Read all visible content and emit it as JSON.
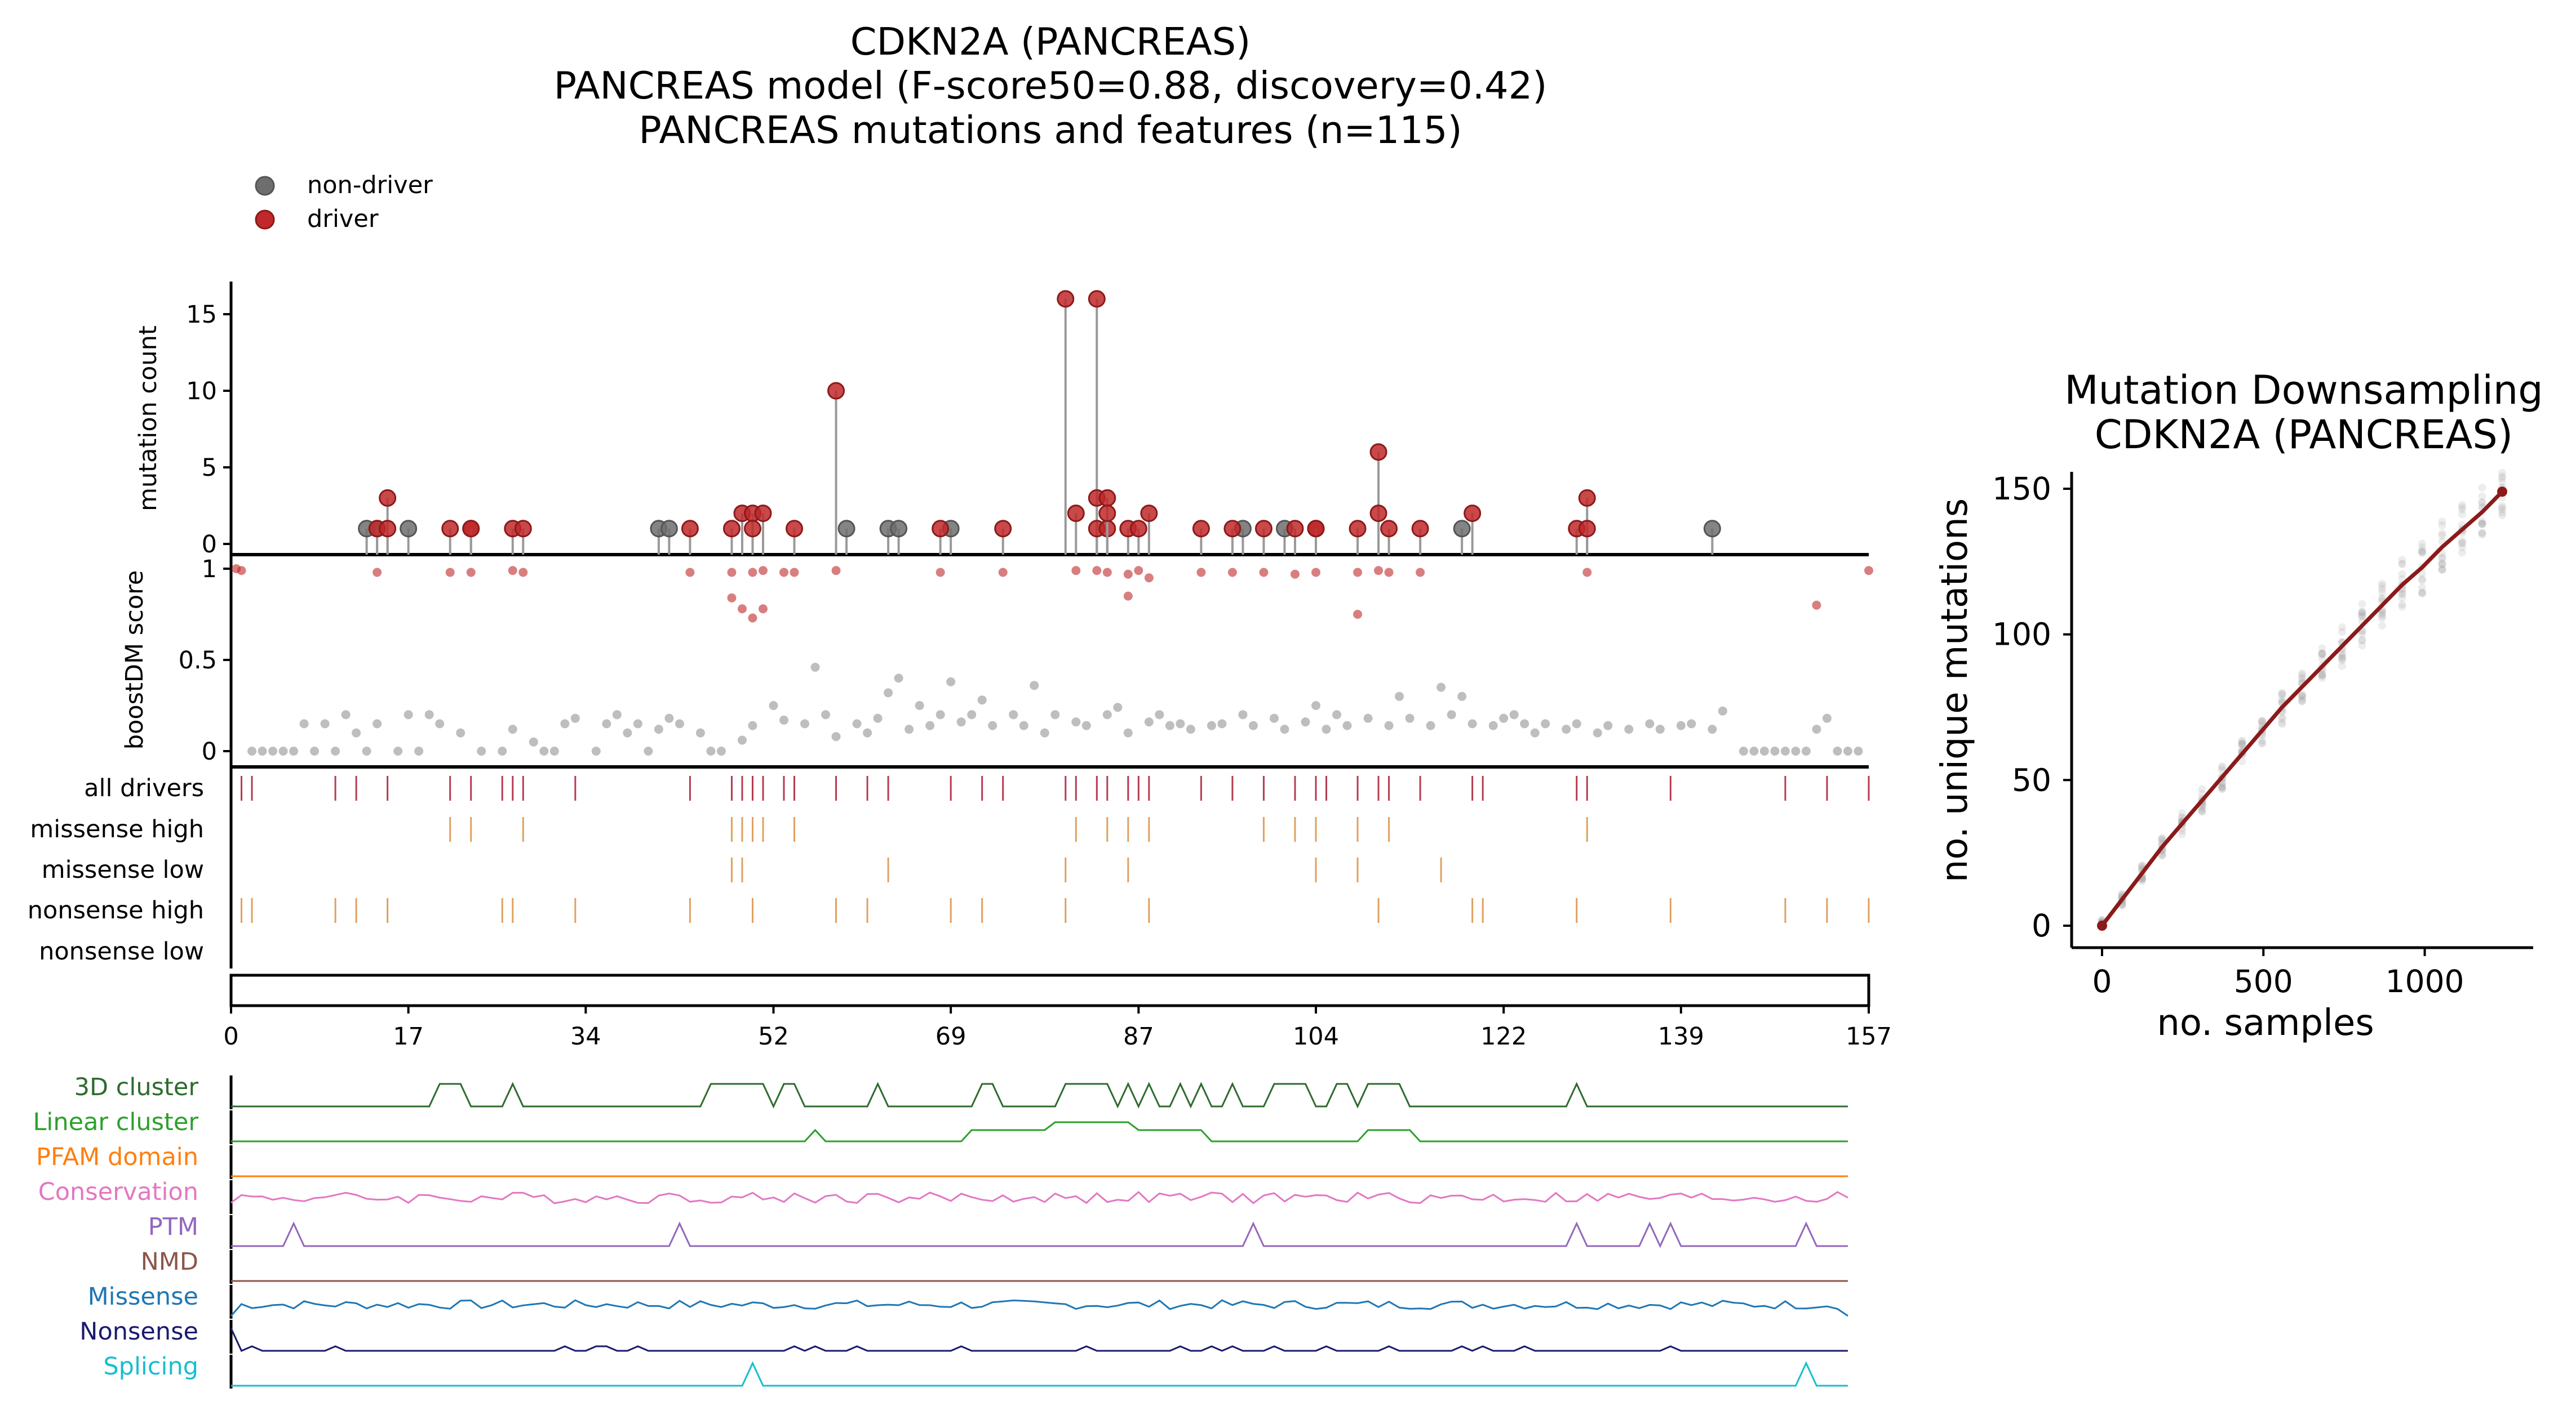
{
  "title_lines": [
    "CDKN2A (PANCREAS)",
    "PANCREAS model (F-score50=0.88, discovery=0.42)",
    "PANCREAS mutations and features (n=115)"
  ],
  "legend": [
    {
      "label": "non-driver",
      "color": "#6e6e6e"
    },
    {
      "label": "driver",
      "color": "#c0282a"
    }
  ],
  "colors": {
    "driver": "#c0282a",
    "non_driver": "#6e6e6e",
    "track_driver": "#b43c50",
    "track_category": "#e0a060",
    "downsampling_line": "#8b1a1a"
  },
  "left_panel": {
    "count_ylabel": "mutation count",
    "score_ylabel": "boostDM score",
    "count_yticks": [
      "0",
      "5",
      "10",
      "15"
    ],
    "score_yticks": [
      "0",
      "0.5",
      "1"
    ],
    "xticks": [
      "0",
      "17",
      "34",
      "52",
      "69",
      "87",
      "104",
      "122",
      "139",
      "157"
    ],
    "track_labels": [
      "all drivers",
      "missense high",
      "missense low",
      "nonsense high",
      "nonsense low"
    ],
    "feature_labels": [
      {
        "label": "3D cluster",
        "color": "#2e6b2e"
      },
      {
        "label": "Linear cluster",
        "color": "#2ca02c"
      },
      {
        "label": "PFAM domain",
        "color": "#ff7f0e"
      },
      {
        "label": "Conservation",
        "color": "#e377c2"
      },
      {
        "label": "PTM",
        "color": "#9467bd"
      },
      {
        "label": "NMD",
        "color": "#8c564b"
      },
      {
        "label": "Missense",
        "color": "#1f77b4"
      },
      {
        "label": "Nonsense",
        "color": "#1a1a6e"
      },
      {
        "label": "Splicing",
        "color": "#17becf"
      }
    ]
  },
  "right_panel": {
    "title_lines": [
      "Mutation Downsampling",
      "CDKN2A (PANCREAS)"
    ],
    "xlabel": "no. samples",
    "ylabel": "no. unique mutations",
    "xticks": [
      "0",
      "500",
      "1000"
    ],
    "yticks": [
      "0",
      "50",
      "100",
      "150"
    ]
  },
  "chart_data": [
    {
      "type": "scatter",
      "title": "CDKN2A (PANCREAS)",
      "ylabel": "mutation count",
      "xlim": [
        0,
        157
      ],
      "ylim": [
        0,
        16
      ],
      "series": [
        {
          "name": "non-driver",
          "points": [
            [
              13,
              1
            ],
            [
              14,
              1
            ],
            [
              17,
              1
            ],
            [
              41,
              1
            ],
            [
              42,
              1
            ],
            [
              59,
              1
            ],
            [
              63,
              1
            ],
            [
              64,
              1
            ],
            [
              69,
              1
            ],
            [
              97,
              1
            ],
            [
              101,
              1
            ],
            [
              118,
              1
            ],
            [
              142,
              1
            ]
          ]
        },
        {
          "name": "driver",
          "points": [
            [
              14,
              1
            ],
            [
              15,
              3
            ],
            [
              15,
              1
            ],
            [
              21,
              1
            ],
            [
              23,
              1
            ],
            [
              23,
              1
            ],
            [
              27,
              1
            ],
            [
              28,
              1
            ],
            [
              44,
              1
            ],
            [
              48,
              1
            ],
            [
              49,
              2
            ],
            [
              50,
              2
            ],
            [
              50,
              1
            ],
            [
              51,
              2
            ],
            [
              54,
              1
            ],
            [
              58,
              10
            ],
            [
              68,
              1
            ],
            [
              74,
              1
            ],
            [
              80,
              16
            ],
            [
              81,
              2
            ],
            [
              83,
              16
            ],
            [
              83,
              3
            ],
            [
              83,
              1
            ],
            [
              84,
              1
            ],
            [
              84,
              3
            ],
            [
              84,
              2
            ],
            [
              86,
              1
            ],
            [
              87,
              1
            ],
            [
              88,
              2
            ],
            [
              93,
              1
            ],
            [
              96,
              1
            ],
            [
              99,
              1
            ],
            [
              102,
              1
            ],
            [
              104,
              1
            ],
            [
              104,
              1
            ],
            [
              108,
              1
            ],
            [
              110,
              6
            ],
            [
              110,
              2
            ],
            [
              111,
              1
            ],
            [
              114,
              1
            ],
            [
              119,
              2
            ],
            [
              129,
              1
            ],
            [
              130,
              3
            ],
            [
              130,
              1
            ]
          ]
        }
      ]
    },
    {
      "type": "scatter",
      "ylabel": "boostDM score",
      "xlim": [
        0,
        157
      ],
      "ylim": [
        0,
        1
      ],
      "series": [
        {
          "name": "driver",
          "points": [
            [
              1,
              0.99
            ],
            [
              0.5,
              1
            ],
            [
              14,
              0.98
            ],
            [
              21,
              0.98
            ],
            [
              23,
              0.98
            ],
            [
              27,
              0.99
            ],
            [
              28,
              0.98
            ],
            [
              44,
              0.98
            ],
            [
              48,
              0.98
            ],
            [
              48,
              0.84
            ],
            [
              49,
              0.78
            ],
            [
              50,
              0.98
            ],
            [
              50,
              0.73
            ],
            [
              51,
              0.99
            ],
            [
              51,
              0.78
            ],
            [
              53,
              0.98
            ],
            [
              54,
              0.98
            ],
            [
              58,
              0.99
            ],
            [
              68,
              0.98
            ],
            [
              74,
              0.98
            ],
            [
              81,
              0.99
            ],
            [
              83,
              0.99
            ],
            [
              84,
              0.98
            ],
            [
              86,
              0.97
            ],
            [
              87,
              0.99
            ],
            [
              86,
              0.85
            ],
            [
              88,
              0.95
            ],
            [
              93,
              0.98
            ],
            [
              96,
              0.98
            ],
            [
              99,
              0.98
            ],
            [
              102,
              0.97
            ],
            [
              104,
              0.98
            ],
            [
              108,
              0.98
            ],
            [
              108,
              0.75
            ],
            [
              110,
              0.99
            ],
            [
              111,
              0.98
            ],
            [
              114,
              0.98
            ],
            [
              130,
              0.98
            ],
            [
              152,
              0.8
            ],
            [
              157,
              0.99
            ]
          ]
        },
        {
          "name": "non-driver",
          "points": [
            [
              2,
              0
            ],
            [
              3,
              0
            ],
            [
              4,
              0
            ],
            [
              5,
              0
            ],
            [
              6,
              0
            ],
            [
              7,
              0.15
            ],
            [
              8,
              0
            ],
            [
              9,
              0.15
            ],
            [
              10,
              0
            ],
            [
              11,
              0.2
            ],
            [
              12,
              0.1
            ],
            [
              13,
              0
            ],
            [
              14,
              0.15
            ],
            [
              16,
              0
            ],
            [
              17,
              0.2
            ],
            [
              18,
              0
            ],
            [
              19,
              0.2
            ],
            [
              20,
              0.15
            ],
            [
              22,
              0.1
            ],
            [
              24,
              0
            ],
            [
              26,
              0
            ],
            [
              27,
              0.12
            ],
            [
              29,
              0.05
            ],
            [
              30,
              0
            ],
            [
              31,
              0
            ],
            [
              32,
              0.15
            ],
            [
              33,
              0.18
            ],
            [
              35,
              0
            ],
            [
              36,
              0.15
            ],
            [
              37,
              0.2
            ],
            [
              38,
              0.1
            ],
            [
              39,
              0.15
            ],
            [
              40,
              0
            ],
            [
              41,
              0.12
            ],
            [
              42,
              0.18
            ],
            [
              43,
              0.15
            ],
            [
              45,
              0.1
            ],
            [
              46,
              0
            ],
            [
              47,
              0
            ],
            [
              49,
              0.06
            ],
            [
              50,
              0.14
            ],
            [
              52,
              0.25
            ],
            [
              53,
              0.17
            ],
            [
              55,
              0.15
            ],
            [
              56,
              0.46
            ],
            [
              57,
              0.2
            ],
            [
              58,
              0.08
            ],
            [
              60,
              0.15
            ],
            [
              61,
              0.1
            ],
            [
              62,
              0.18
            ],
            [
              63,
              0.32
            ],
            [
              64,
              0.4
            ],
            [
              65,
              0.12
            ],
            [
              66,
              0.25
            ],
            [
              67,
              0.14
            ],
            [
              68,
              0.2
            ],
            [
              69,
              0.38
            ],
            [
              70,
              0.16
            ],
            [
              71,
              0.2
            ],
            [
              72,
              0.28
            ],
            [
              73,
              0.14
            ],
            [
              75,
              0.2
            ],
            [
              76,
              0.14
            ],
            [
              77,
              0.36
            ],
            [
              78,
              0.1
            ],
            [
              79,
              0.2
            ],
            [
              81,
              0.16
            ],
            [
              82,
              0.14
            ],
            [
              84,
              0.2
            ],
            [
              85,
              0.24
            ],
            [
              86,
              0.1
            ],
            [
              88,
              0.16
            ],
            [
              89,
              0.2
            ],
            [
              90,
              0.14
            ],
            [
              91,
              0.15
            ],
            [
              92,
              0.12
            ],
            [
              94,
              0.14
            ],
            [
              95,
              0.15
            ],
            [
              97,
              0.2
            ],
            [
              98,
              0.14
            ],
            [
              100,
              0.18
            ],
            [
              101,
              0.12
            ],
            [
              103,
              0.16
            ],
            [
              104,
              0.25
            ],
            [
              105,
              0.12
            ],
            [
              106,
              0.2
            ],
            [
              107,
              0.14
            ],
            [
              109,
              0.18
            ],
            [
              111,
              0.14
            ],
            [
              112,
              0.3
            ],
            [
              113,
              0.18
            ],
            [
              115,
              0.14
            ],
            [
              116,
              0.35
            ],
            [
              117,
              0.2
            ],
            [
              118,
              0.3
            ],
            [
              119,
              0.15
            ],
            [
              121,
              0.14
            ],
            [
              122,
              0.18
            ],
            [
              123,
              0.2
            ],
            [
              124,
              0.15
            ],
            [
              125,
              0.1
            ],
            [
              126,
              0.15
            ],
            [
              128,
              0.12
            ],
            [
              129,
              0.15
            ],
            [
              131,
              0.1
            ],
            [
              132,
              0.14
            ],
            [
              134,
              0.12
            ],
            [
              136,
              0.15
            ],
            [
              137,
              0.12
            ],
            [
              139,
              0.14
            ],
            [
              140,
              0.15
            ],
            [
              142,
              0.12
            ],
            [
              143,
              0.22
            ],
            [
              145,
              0
            ],
            [
              146,
              0
            ],
            [
              147,
              0
            ],
            [
              148,
              0
            ],
            [
              149,
              0
            ],
            [
              150,
              0
            ],
            [
              151,
              0
            ],
            [
              152,
              0.12
            ],
            [
              153,
              0.18
            ],
            [
              154,
              0
            ],
            [
              155,
              0
            ],
            [
              156,
              0
            ]
          ]
        }
      ]
    },
    {
      "type": "scatter",
      "tracks": {
        "all drivers": [
          1,
          2,
          10,
          12,
          15,
          21,
          23,
          26,
          27,
          28,
          33,
          44,
          48,
          49,
          50,
          51,
          53,
          54,
          58,
          61,
          63,
          69,
          72,
          74,
          80,
          81,
          83,
          84,
          86,
          87,
          88,
          93,
          96,
          99,
          102,
          104,
          105,
          108,
          110,
          111,
          114,
          119,
          120,
          129,
          130,
          138,
          149,
          153,
          157
        ],
        "missense high": [
          21,
          23,
          28,
          48,
          49,
          50,
          51,
          54,
          81,
          84,
          86,
          88,
          99,
          102,
          104,
          108,
          111,
          130
        ],
        "missense low": [
          48,
          49,
          63,
          80,
          86,
          104,
          108,
          116
        ],
        "nonsense high": [
          1,
          2,
          10,
          12,
          15,
          26,
          27,
          33,
          44,
          50,
          58,
          61,
          69,
          72,
          80,
          88,
          110,
          119,
          120,
          129,
          138,
          149,
          153,
          157
        ],
        "nonsense low": []
      },
      "xlim": [
        0,
        157
      ]
    },
    {
      "type": "line",
      "title": "Mutation Downsampling\nCDKN2A (PANCREAS)",
      "xlabel": "no. samples",
      "ylabel": "no. unique mutations",
      "xlim": [
        -70,
        1290
      ],
      "ylim": [
        -8,
        158
      ],
      "series": [
        {
          "name": "mean",
          "x": [
            0,
            62,
            124,
            186,
            248,
            310,
            372,
            434,
            496,
            558,
            620,
            682,
            744,
            806,
            868,
            930,
            992,
            1054,
            1116,
            1178,
            1240
          ],
          "y": [
            0,
            9,
            18,
            27,
            35,
            43,
            51,
            59,
            67,
            75,
            82,
            89,
            96,
            103,
            110,
            117,
            123,
            130,
            136,
            142,
            149
          ]
        }
      ]
    }
  ]
}
